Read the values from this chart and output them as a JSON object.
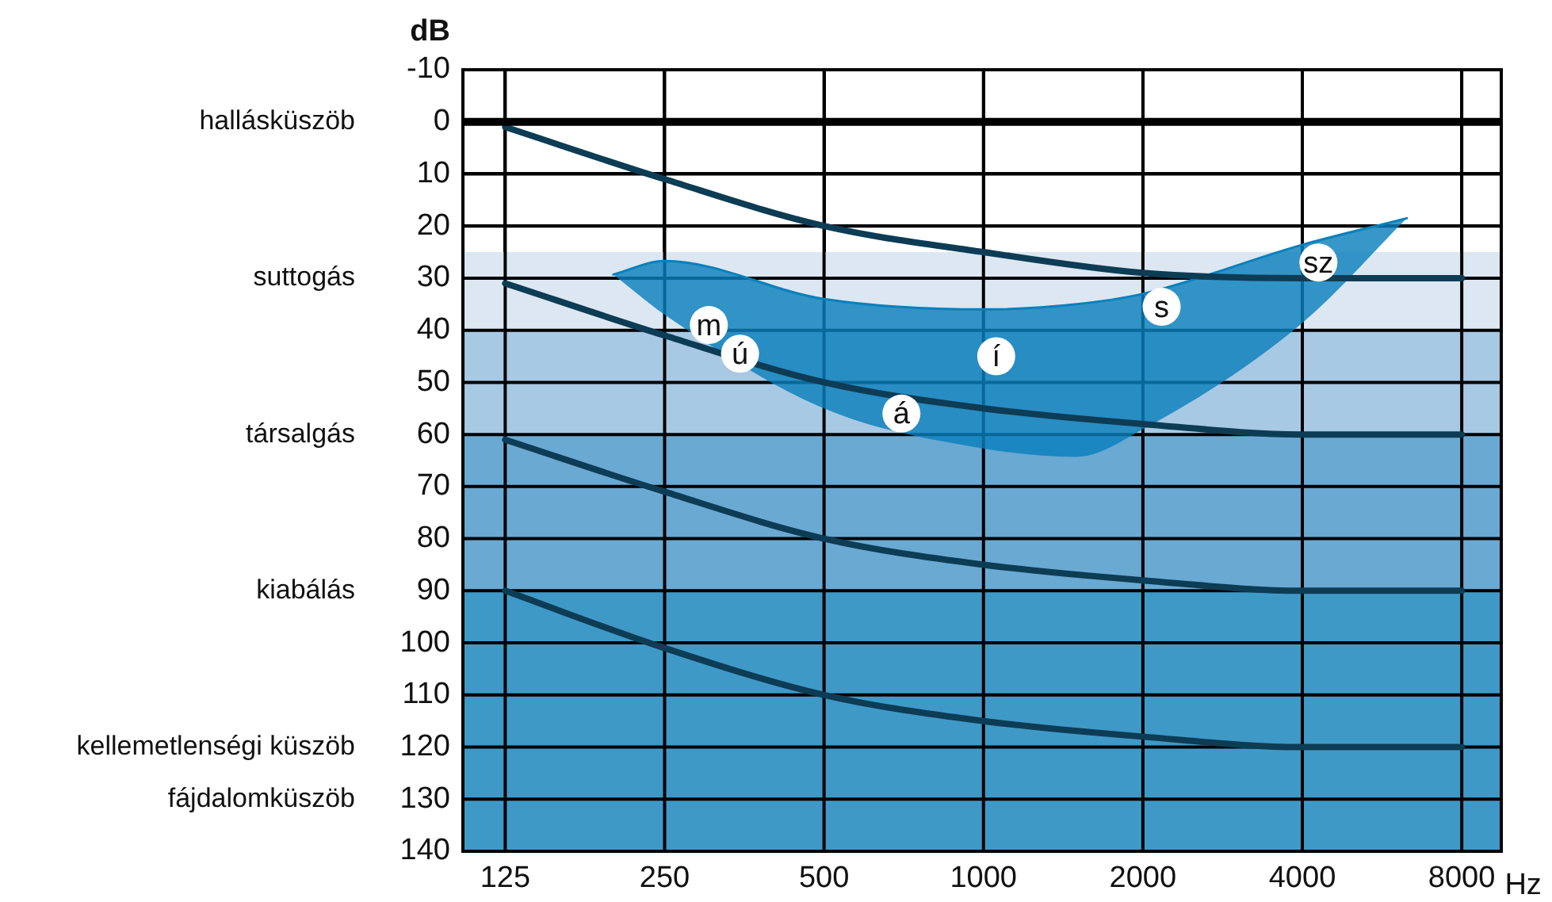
{
  "chart_data": {
    "type": "line",
    "xlabel": "Hz",
    "ylabel": "dB",
    "x": [
      125,
      250,
      500,
      1000,
      2000,
      4000,
      8000
    ],
    "xlim": [
      104,
      9500
    ],
    "xticks": [
      125,
      250,
      500,
      1000,
      2000,
      4000,
      8000
    ],
    "ylim": [
      140,
      -10
    ],
    "yticks": [
      -10,
      0,
      10,
      20,
      30,
      40,
      50,
      60,
      70,
      80,
      90,
      100,
      110,
      120,
      130,
      140
    ],
    "y2_categories": [
      null,
      "hallásküszöb",
      null,
      null,
      "suttogás",
      null,
      null,
      "társalgás",
      null,
      null,
      "kiabálás",
      null,
      null,
      "kellemetlenségi küszöb",
      "fájdalomküszöb",
      null
    ],
    "log": "x",
    "grid": true,
    "legend": false,
    "marker": "none",
    "line_style": "solid",
    "series": [
      {
        "type": "line",
        "color": "#0a80bb",
        "x": [
          200,
          250,
          500,
          1000,
          1500,
          2000,
          4000,
          6300
        ],
        "values": [
          29.3,
          26.7,
          34,
          36,
          35,
          33,
          23.6,
          18.5
        ],
        "lower": [
          29.3,
          26.7,
          34,
          36,
          35,
          33,
          23.6,
          18.5
        ],
        "upper": [
          29.3,
          37,
          55,
          62.7,
          64.3,
          59,
          38.6,
          18.5
        ]
      },
      {
        "color": "#0d3c55",
        "values": [
          1,
          11,
          20,
          25,
          29,
          30,
          30
        ]
      },
      {
        "color": "#0d3c55",
        "values": [
          31,
          41,
          50,
          55,
          58,
          60,
          60
        ]
      },
      {
        "color": "#0d3c55",
        "values": [
          61,
          71,
          80,
          85,
          88,
          90,
          90
        ]
      },
      {
        "color": "#0d3c55",
        "values": [
          90,
          101,
          110,
          115,
          118,
          120,
          120
        ]
      }
    ],
    "bands": [
      {
        "axis": "y",
        "from": 25,
        "to": 40,
        "color": "#dce7f2"
      },
      {
        "axis": "y",
        "from": 40,
        "to": 60,
        "color": "#a8c9e3"
      },
      {
        "axis": "y",
        "from": 60,
        "to": 90,
        "color": "#6aa9d2"
      },
      {
        "axis": "y",
        "from": 90,
        "to": 140,
        "color": "#3f99c7"
      }
    ],
    "ref_lines": [
      {
        "axis": "y",
        "value": 0,
        "color": "#000000"
      }
    ],
    "annotations": [
      {
        "text": "m",
        "x": 303,
        "y": 39
      },
      {
        "text": "ú",
        "x": 347,
        "y": 44.5
      },
      {
        "text": "á",
        "x": 700,
        "y": 56
      },
      {
        "text": "í",
        "x": 1057,
        "y": 45
      },
      {
        "text": "s",
        "x": 2170,
        "y": 35.5
      },
      {
        "text": "sz",
        "x": 4290,
        "y": 27
      }
    ]
  }
}
